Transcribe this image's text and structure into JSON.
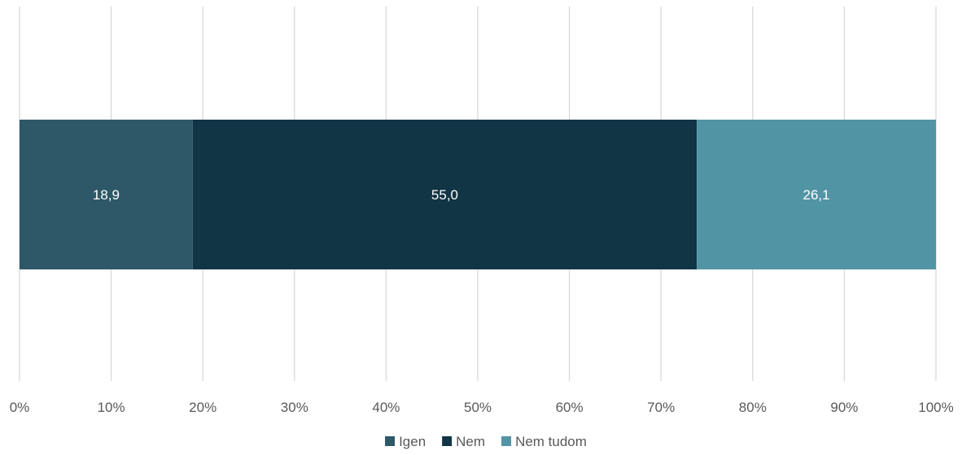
{
  "chart_data": {
    "type": "bar",
    "orientation": "horizontal",
    "stacked": "percent",
    "categories": [
      ""
    ],
    "series": [
      {
        "name": "Igen",
        "values": [
          18.9
        ],
        "label": "18,9",
        "color": "#2e5868"
      },
      {
        "name": "Nem",
        "values": [
          55.0
        ],
        "label": "55,0",
        "color": "#113545"
      },
      {
        "name": "Nem tudom",
        "values": [
          26.1
        ],
        "label": "26,1",
        "color": "#5195a5"
      }
    ],
    "xlim": [
      0,
      100
    ],
    "xticks": [
      "0%",
      "10%",
      "20%",
      "30%",
      "40%",
      "50%",
      "60%",
      "70%",
      "80%",
      "90%",
      "100%"
    ],
    "grid": true,
    "legend": "bottom"
  }
}
